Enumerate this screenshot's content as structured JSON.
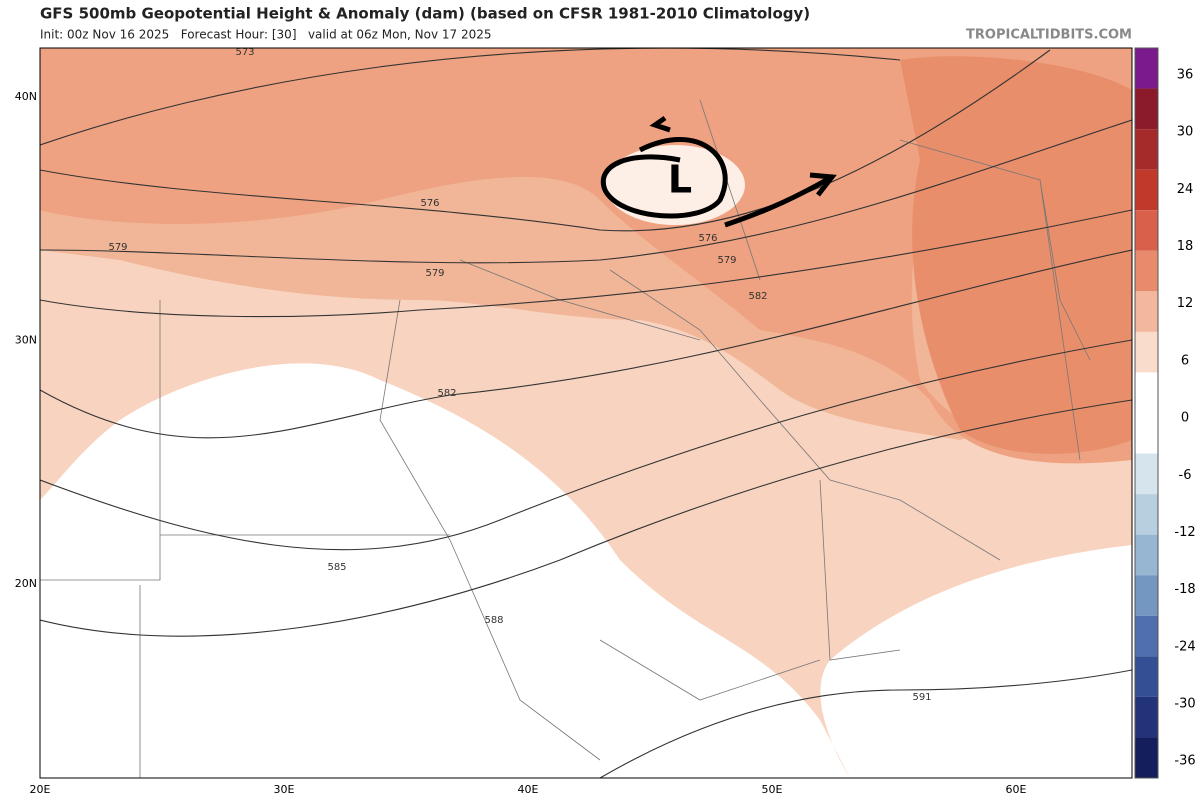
{
  "header": {
    "title": "GFS 500mb Geopotential Height & Anomaly (dam) (based on CFSR 1981-2010 Climatology)",
    "subtitle": "Init: 00z Nov 16 2025   Forecast Hour: [30]   valid at 06z Mon, Nov 17 2025",
    "site": "TROPICALTIDBITS.COM"
  },
  "map": {
    "lat_labels": [
      "40N",
      "30N",
      "20N"
    ],
    "lon_labels": [
      "20E",
      "30E",
      "40E",
      "50E",
      "60E"
    ],
    "contour_labels": [
      573,
      576,
      576,
      579,
      579,
      579,
      582,
      582,
      585,
      588,
      591
    ],
    "annotation": "L"
  },
  "colorbar": {
    "ticks": [
      36,
      30,
      24,
      18,
      12,
      6,
      0,
      -6,
      -12,
      -18,
      -24,
      -30,
      -36
    ]
  }
}
